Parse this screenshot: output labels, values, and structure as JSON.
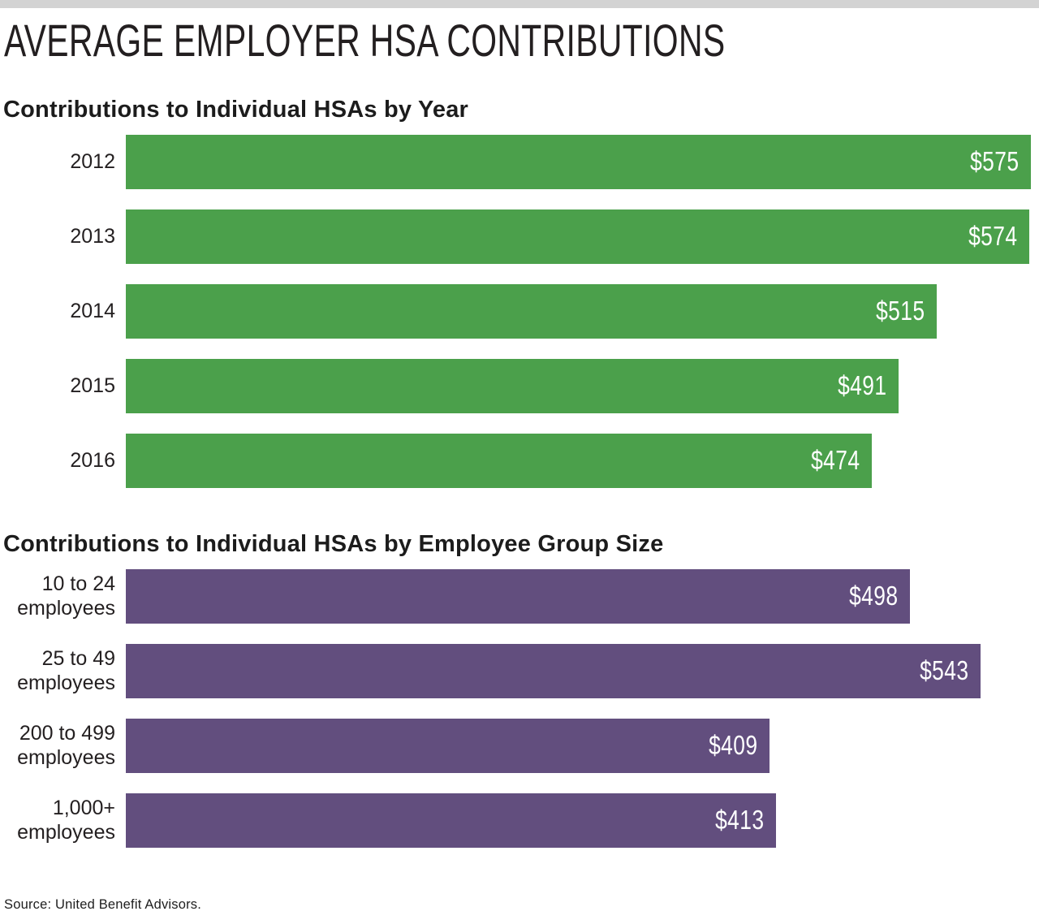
{
  "page": {
    "title": "AVERAGE EMPLOYER HSA CONTRIBUTIONS",
    "source": "Source: United Benefit Advisors.",
    "colors": {
      "top_bar": "#d3d3d3",
      "green": "#4ba04b",
      "purple": "#624e7e",
      "text": "#231f20",
      "value_text": "#ffffff"
    }
  },
  "chart_data": [
    {
      "type": "bar",
      "orientation": "horizontal",
      "title": "Contributions to Individual HSAs by Year",
      "categories": [
        "2012",
        "2013",
        "2014",
        "2015",
        "2016"
      ],
      "values": [
        575,
        574,
        515,
        491,
        474
      ],
      "value_labels": [
        "$575",
        "$574",
        "$515",
        "$491",
        "$474"
      ],
      "bar_color": "#4ba04b",
      "xlim": [
        0,
        580
      ],
      "grid": false,
      "legend": false,
      "value_label_position": "inside-right"
    },
    {
      "type": "bar",
      "orientation": "horizontal",
      "title": "Contributions to Individual HSAs by Employee Group Size",
      "categories": [
        "10 to 24\nemployees",
        "25 to 49\nemployees",
        "200 to 499\nemployees",
        "1,000+\nemployees"
      ],
      "values": [
        498,
        543,
        409,
        413
      ],
      "value_labels": [
        "$498",
        "$543",
        "$409",
        "$413"
      ],
      "bar_color": "#624e7e",
      "xlim": [
        0,
        580
      ],
      "grid": false,
      "legend": false,
      "value_label_position": "inside-right"
    }
  ]
}
